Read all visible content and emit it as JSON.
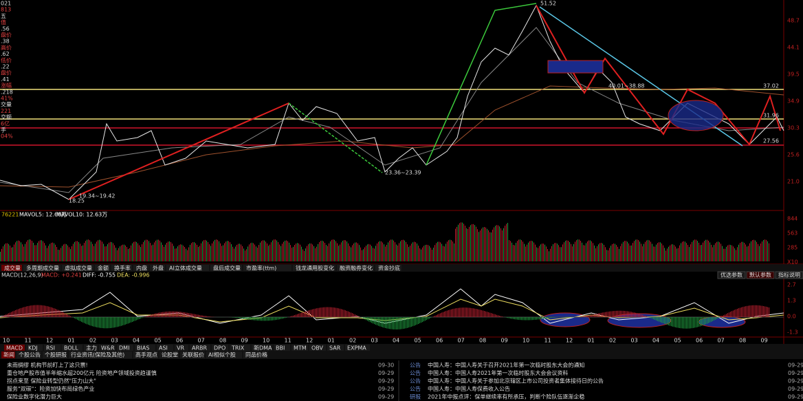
{
  "side_panel": [
    "021",
    "813",
    "五",
    "值",
    ".56",
    "盘价",
    ".38",
    "高价",
    ".62",
    "低价",
    ".22",
    "盘价",
    ".41",
    "涨幅",
    ".218",
    "41%",
    "交量",
    "221",
    "交额",
    "6亿",
    "手",
    "04%"
  ],
  "price_axis": [
    "48.7",
    "44.1",
    "39.5",
    "34.9",
    "30.3",
    "25.6",
    "21.0"
  ],
  "annotations": {
    "high": "51.52",
    "upper_line": "37.02",
    "mid_line": "31.96",
    "lower_line": "27.56",
    "low_a": "23.36~23.39",
    "low_b": "19.34~19.42",
    "low_c": "18.25",
    "range": "40.01~38.88"
  },
  "volume": {
    "title": "76221",
    "mavol5": "MAVOL5: 12.60万",
    "mavol10": "MAVOL10: 12.63万",
    "axis": [
      "844",
      "563",
      "285",
      "X10"
    ]
  },
  "volume_tabs": [
    "成交量",
    "多周期成交量",
    "虚拟成交量",
    "金额",
    "换手率",
    "内盘",
    "外盘",
    "AI立体成交量",
    "盘后成交量",
    "市盈率(ttm)",
    "钱龙通用股变化",
    "融资融券变化",
    "资金抄底"
  ],
  "macd": {
    "title": "MACD(12,26,9)",
    "macd": "MACD: +0.241",
    "diff": "DIFF: -0.755",
    "dea": "DEA: -0.996",
    "axis": [
      "2.7",
      "1.3",
      "0.0",
      "-1.3"
    ],
    "buttons": [
      "优选参数",
      "默认参数",
      "指标说明"
    ]
  },
  "months": [
    "10",
    "11",
    "12",
    "01",
    "02",
    "03",
    "04",
    "05",
    "06",
    "07",
    "08",
    "09",
    "10",
    "11",
    "12",
    "01",
    "02",
    "03",
    "04",
    "05",
    "06",
    "07",
    "08",
    "09",
    "10",
    "11",
    "12",
    "01",
    "02",
    "03",
    "04",
    "05",
    "06",
    "07",
    "08",
    "09"
  ],
  "indicator_tabs": [
    "MACD",
    "KDJ",
    "RSI",
    "BOLL",
    "主力",
    "W&R",
    "DMI",
    "BIAS",
    "ASI",
    "VR",
    "ARBR",
    "DPO",
    "TRIX",
    "新DMA",
    "BBI",
    "MTM",
    "OBV",
    "SAR",
    "EXPMA"
  ],
  "info_tabs": [
    "新闻",
    "个股公告",
    "个股研报",
    "行业资讯(保险及其他)",
    "高手观点",
    "论股堂",
    "关联报价",
    "AI相似个股",
    "同品价格"
  ],
  "news_left": [
    {
      "title": "未雨绸缪 机构节前盯上了这只票!",
      "date": "09-30"
    },
    {
      "title": "重仓地产股市值半年缩水超200亿元 险资地产领域投资趋谨慎",
      "date": "09-29"
    },
    {
      "title": "拐点来至 保险业转型仍然\"压力山大\"",
      "date": "09-29"
    },
    {
      "title": "服务\"双碳\"：险资加快布局绿色产业",
      "date": "09-29"
    },
    {
      "title": "保险业数字化潜力巨大",
      "date": "09-29"
    }
  ],
  "news_right": [
    {
      "tag": "公告",
      "title": "中国人寿：中国人寿关于召开2021年第一次临时股东大会的通知",
      "date": "09-29"
    },
    {
      "tag": "公告",
      "title": "中国人寿：中国人寿2021年第一次临时股东大会会议资料",
      "date": "09-29"
    },
    {
      "tag": "公告",
      "title": "中国人寿：中国人寿关于参加北京辖区上市公司投资者集体接待日的公告",
      "date": "09-29"
    },
    {
      "tag": "公告",
      "title": "中国人寿：中国人寿保费收入公告",
      "date": "09-29"
    },
    {
      "tag": "研报",
      "title": "2021年中报点评：保单继续率有所承压，判断个险队伍逐渐企稳",
      "date": "09-29"
    }
  ]
}
